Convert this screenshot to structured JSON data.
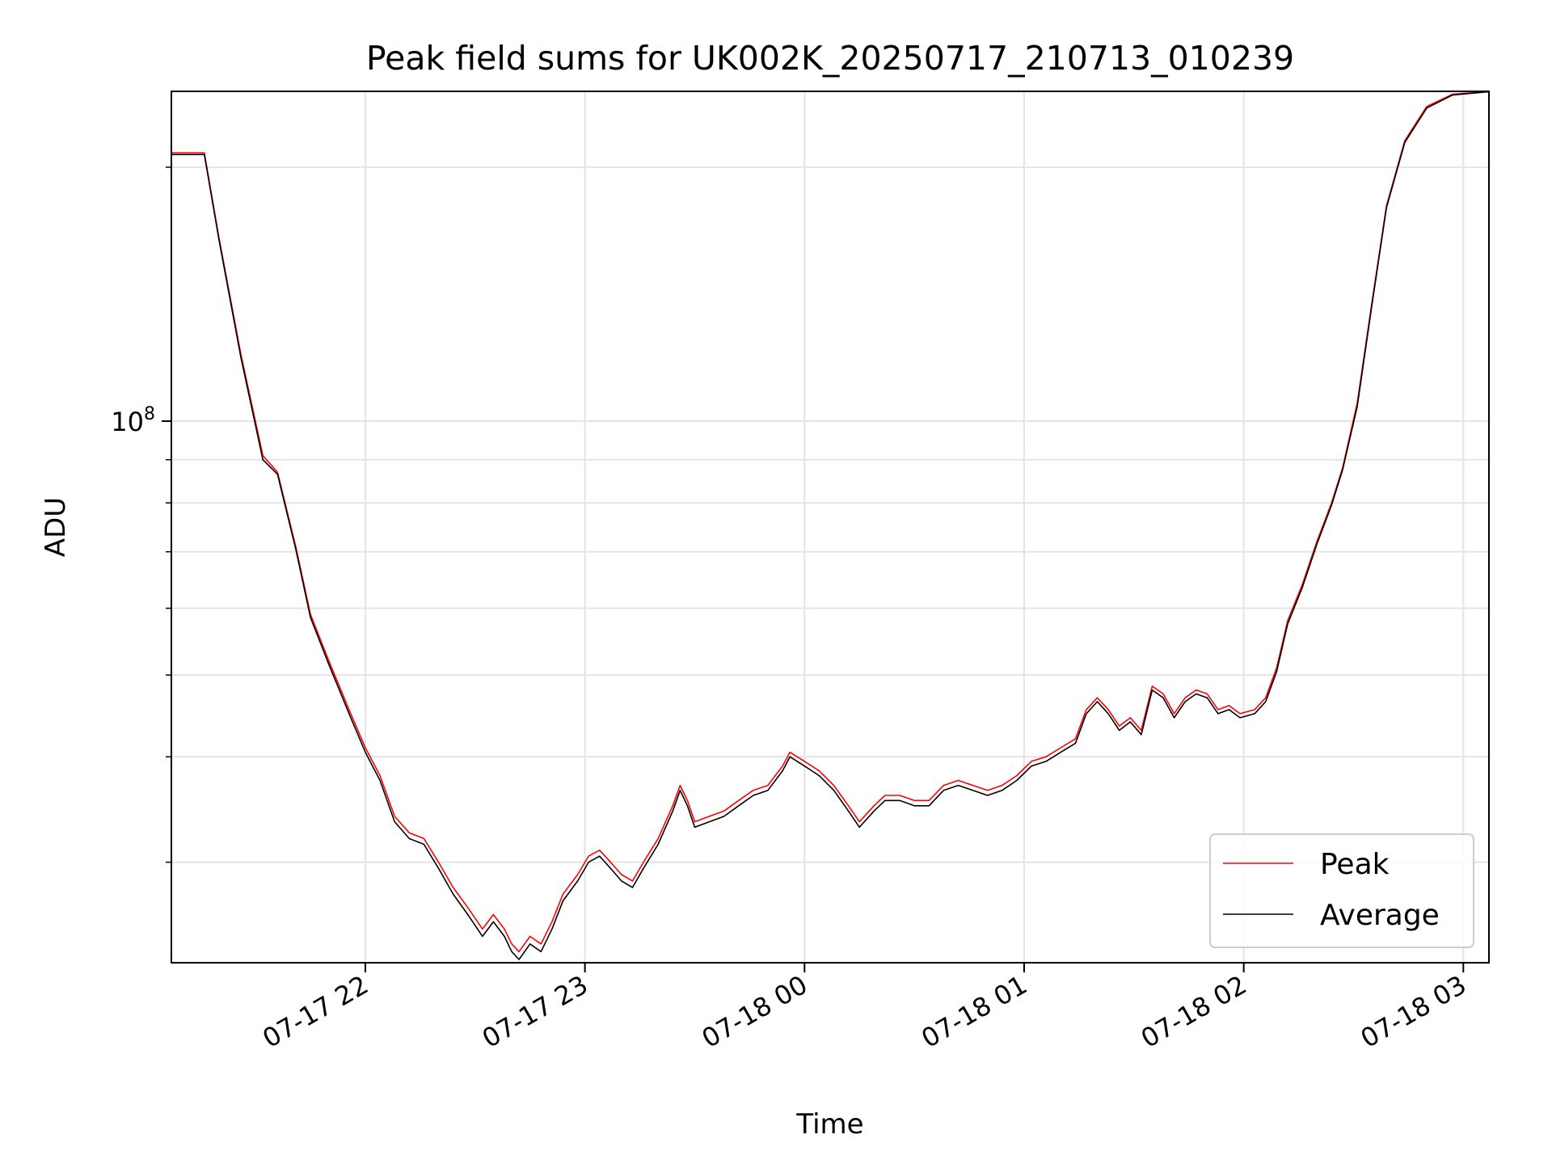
{
  "chart_data": {
    "type": "line",
    "title": "Peak field sums for UK002K_20250717_210713_010239",
    "xlabel": "Time",
    "ylabel": "ADU",
    "xscale": "time",
    "yscale": "log",
    "xlim": [
      "2025-07-17 21:07",
      "2025-07-18 03:07"
    ],
    "ylim": [
      22800000,
      246000000
    ],
    "x_ticks": [
      {
        "value": "2025-07-17 22:00",
        "label": "07-17 22"
      },
      {
        "value": "2025-07-17 23:00",
        "label": "07-17 23"
      },
      {
        "value": "2025-07-18 00:00",
        "label": "07-18 00"
      },
      {
        "value": "2025-07-18 01:00",
        "label": "07-18 01"
      },
      {
        "value": "2025-07-18 02:00",
        "label": "07-18 02"
      },
      {
        "value": "2025-07-18 03:00",
        "label": "07-18 03"
      }
    ],
    "y_major_ticks": [
      {
        "value": 100000000,
        "base": "10",
        "exponent": "8"
      }
    ],
    "y_minor_ticks": [
      30000000,
      40000000,
      50000000,
      60000000,
      70000000,
      80000000,
      90000000,
      200000000
    ],
    "grid": true,
    "legend_position": "lower-right",
    "series": [
      {
        "name": "Peak",
        "color": "#ff0000",
        "points": [
          [
            "2025-07-17 21:07",
            208000000
          ],
          [
            "2025-07-17 21:16",
            208000000
          ],
          [
            "2025-07-17 21:20",
            165000000
          ],
          [
            "2025-07-17 21:26",
            120000000
          ],
          [
            "2025-07-17 21:32",
            91000000
          ],
          [
            "2025-07-17 21:36",
            87000000
          ],
          [
            "2025-07-17 21:41",
            71000000
          ],
          [
            "2025-07-17 21:45",
            59000000
          ],
          [
            "2025-07-17 21:50",
            52000000
          ],
          [
            "2025-07-17 21:56",
            45000000
          ],
          [
            "2025-07-17 22:00",
            41000000
          ],
          [
            "2025-07-17 22:04",
            38000000
          ],
          [
            "2025-07-17 22:08",
            34000000
          ],
          [
            "2025-07-17 22:12",
            32500000
          ],
          [
            "2025-07-17 22:16",
            32000000
          ],
          [
            "2025-07-17 22:20",
            30000000
          ],
          [
            "2025-07-17 22:24",
            28000000
          ],
          [
            "2025-07-17 22:28",
            26500000
          ],
          [
            "2025-07-17 22:32",
            25000000
          ],
          [
            "2025-07-17 22:35",
            26000000
          ],
          [
            "2025-07-17 22:38",
            25000000
          ],
          [
            "2025-07-17 22:40",
            24000000
          ],
          [
            "2025-07-17 22:42",
            23500000
          ],
          [
            "2025-07-17 22:45",
            24500000
          ],
          [
            "2025-07-17 22:48",
            24000000
          ],
          [
            "2025-07-17 22:51",
            25500000
          ],
          [
            "2025-07-17 22:54",
            27500000
          ],
          [
            "2025-07-17 22:58",
            29000000
          ],
          [
            "2025-07-17 23:01",
            30500000
          ],
          [
            "2025-07-17 23:04",
            31000000
          ],
          [
            "2025-07-17 23:07",
            30000000
          ],
          [
            "2025-07-17 23:10",
            29000000
          ],
          [
            "2025-07-17 23:13",
            28500000
          ],
          [
            "2025-07-17 23:16",
            30000000
          ],
          [
            "2025-07-17 23:20",
            32000000
          ],
          [
            "2025-07-17 23:24",
            35000000
          ],
          [
            "2025-07-17 23:26",
            37000000
          ],
          [
            "2025-07-17 23:28",
            35500000
          ],
          [
            "2025-07-17 23:30",
            33500000
          ],
          [
            "2025-07-17 23:34",
            34000000
          ],
          [
            "2025-07-17 23:38",
            34500000
          ],
          [
            "2025-07-17 23:42",
            35500000
          ],
          [
            "2025-07-17 23:46",
            36500000
          ],
          [
            "2025-07-17 23:50",
            37000000
          ],
          [
            "2025-07-17 23:54",
            39000000
          ],
          [
            "2025-07-17 23:56",
            40500000
          ],
          [
            "2025-07-18 00:00",
            39500000
          ],
          [
            "2025-07-18 00:04",
            38500000
          ],
          [
            "2025-07-18 00:08",
            37000000
          ],
          [
            "2025-07-18 00:12",
            35000000
          ],
          [
            "2025-07-18 00:15",
            33500000
          ],
          [
            "2025-07-18 00:19",
            35000000
          ],
          [
            "2025-07-18 00:22",
            36000000
          ],
          [
            "2025-07-18 00:26",
            36000000
          ],
          [
            "2025-07-18 00:30",
            35500000
          ],
          [
            "2025-07-18 00:34",
            35500000
          ],
          [
            "2025-07-18 00:38",
            37000000
          ],
          [
            "2025-07-18 00:42",
            37500000
          ],
          [
            "2025-07-18 00:46",
            37000000
          ],
          [
            "2025-07-18 00:50",
            36500000
          ],
          [
            "2025-07-18 00:54",
            37000000
          ],
          [
            "2025-07-18 00:58",
            38000000
          ],
          [
            "2025-07-18 01:02",
            39500000
          ],
          [
            "2025-07-18 01:06",
            40000000
          ],
          [
            "2025-07-18 01:10",
            41000000
          ],
          [
            "2025-07-18 01:14",
            42000000
          ],
          [
            "2025-07-18 01:17",
            45500000
          ],
          [
            "2025-07-18 01:20",
            47000000
          ],
          [
            "2025-07-18 01:23",
            45500000
          ],
          [
            "2025-07-18 01:26",
            43500000
          ],
          [
            "2025-07-18 01:29",
            44500000
          ],
          [
            "2025-07-18 01:32",
            43000000
          ],
          [
            "2025-07-18 01:35",
            48500000
          ],
          [
            "2025-07-18 01:38",
            47500000
          ],
          [
            "2025-07-18 01:41",
            45000000
          ],
          [
            "2025-07-18 01:44",
            47000000
          ],
          [
            "2025-07-18 01:47",
            48000000
          ],
          [
            "2025-07-18 01:50",
            47500000
          ],
          [
            "2025-07-18 01:53",
            45500000
          ],
          [
            "2025-07-18 01:56",
            46000000
          ],
          [
            "2025-07-18 01:59",
            45000000
          ],
          [
            "2025-07-18 02:03",
            45500000
          ],
          [
            "2025-07-18 02:06",
            47000000
          ],
          [
            "2025-07-18 02:09",
            51000000
          ],
          [
            "2025-07-18 02:12",
            58000000
          ],
          [
            "2025-07-18 02:16",
            64000000
          ],
          [
            "2025-07-18 02:20",
            72000000
          ],
          [
            "2025-07-18 02:24",
            80000000
          ],
          [
            "2025-07-18 02:27",
            88000000
          ],
          [
            "2025-07-18 02:31",
            105000000
          ],
          [
            "2025-07-18 02:35",
            138000000
          ],
          [
            "2025-07-18 02:39",
            180000000
          ],
          [
            "2025-07-18 02:44",
            215000000
          ],
          [
            "2025-07-18 02:50",
            236000000
          ],
          [
            "2025-07-18 02:57",
            244000000
          ],
          [
            "2025-07-18 03:07",
            246000000
          ]
        ]
      },
      {
        "name": "Average",
        "color": "#000000",
        "points": [
          [
            "2025-07-17 21:07",
            207000000
          ],
          [
            "2025-07-17 21:16",
            207000000
          ],
          [
            "2025-07-17 21:20",
            164000000
          ],
          [
            "2025-07-17 21:26",
            119000000
          ],
          [
            "2025-07-17 21:32",
            90000000
          ],
          [
            "2025-07-17 21:36",
            86500000
          ],
          [
            "2025-07-17 21:41",
            70500000
          ],
          [
            "2025-07-17 21:45",
            58500000
          ],
          [
            "2025-07-17 21:50",
            51500000
          ],
          [
            "2025-07-17 21:56",
            44500000
          ],
          [
            "2025-07-17 22:00",
            40500000
          ],
          [
            "2025-07-17 22:04",
            37500000
          ],
          [
            "2025-07-17 22:08",
            33500000
          ],
          [
            "2025-07-17 22:12",
            32000000
          ],
          [
            "2025-07-17 22:16",
            31500000
          ],
          [
            "2025-07-17 22:20",
            29500000
          ],
          [
            "2025-07-17 22:24",
            27500000
          ],
          [
            "2025-07-17 22:28",
            26000000
          ],
          [
            "2025-07-17 22:32",
            24500000
          ],
          [
            "2025-07-17 22:35",
            25500000
          ],
          [
            "2025-07-17 22:38",
            24500000
          ],
          [
            "2025-07-17 22:40",
            23500000
          ],
          [
            "2025-07-17 22:42",
            23000000
          ],
          [
            "2025-07-17 22:45",
            24000000
          ],
          [
            "2025-07-17 22:48",
            23500000
          ],
          [
            "2025-07-17 22:51",
            25000000
          ],
          [
            "2025-07-17 22:54",
            27000000
          ],
          [
            "2025-07-17 22:58",
            28500000
          ],
          [
            "2025-07-17 23:01",
            30000000
          ],
          [
            "2025-07-17 23:04",
            30500000
          ],
          [
            "2025-07-17 23:07",
            29500000
          ],
          [
            "2025-07-17 23:10",
            28500000
          ],
          [
            "2025-07-17 23:13",
            28000000
          ],
          [
            "2025-07-17 23:16",
            29500000
          ],
          [
            "2025-07-17 23:20",
            31500000
          ],
          [
            "2025-07-17 23:24",
            34500000
          ],
          [
            "2025-07-17 23:26",
            36500000
          ],
          [
            "2025-07-17 23:28",
            35000000
          ],
          [
            "2025-07-17 23:30",
            33000000
          ],
          [
            "2025-07-17 23:34",
            33500000
          ],
          [
            "2025-07-17 23:38",
            34000000
          ],
          [
            "2025-07-17 23:42",
            35000000
          ],
          [
            "2025-07-17 23:46",
            36000000
          ],
          [
            "2025-07-17 23:50",
            36500000
          ],
          [
            "2025-07-17 23:54",
            38500000
          ],
          [
            "2025-07-17 23:56",
            40000000
          ],
          [
            "2025-07-18 00:00",
            39000000
          ],
          [
            "2025-07-18 00:04",
            38000000
          ],
          [
            "2025-07-18 00:08",
            36500000
          ],
          [
            "2025-07-18 00:12",
            34500000
          ],
          [
            "2025-07-18 00:15",
            33000000
          ],
          [
            "2025-07-18 00:19",
            34500000
          ],
          [
            "2025-07-18 00:22",
            35500000
          ],
          [
            "2025-07-18 00:26",
            35500000
          ],
          [
            "2025-07-18 00:30",
            35000000
          ],
          [
            "2025-07-18 00:34",
            35000000
          ],
          [
            "2025-07-18 00:38",
            36500000
          ],
          [
            "2025-07-18 00:42",
            37000000
          ],
          [
            "2025-07-18 00:46",
            36500000
          ],
          [
            "2025-07-18 00:50",
            36000000
          ],
          [
            "2025-07-18 00:54",
            36500000
          ],
          [
            "2025-07-18 00:58",
            37500000
          ],
          [
            "2025-07-18 01:02",
            39000000
          ],
          [
            "2025-07-18 01:06",
            39500000
          ],
          [
            "2025-07-18 01:10",
            40500000
          ],
          [
            "2025-07-18 01:14",
            41500000
          ],
          [
            "2025-07-18 01:17",
            45000000
          ],
          [
            "2025-07-18 01:20",
            46500000
          ],
          [
            "2025-07-18 01:23",
            45000000
          ],
          [
            "2025-07-18 01:26",
            43000000
          ],
          [
            "2025-07-18 01:29",
            44000000
          ],
          [
            "2025-07-18 01:32",
            42500000
          ],
          [
            "2025-07-18 01:35",
            48000000
          ],
          [
            "2025-07-18 01:38",
            47000000
          ],
          [
            "2025-07-18 01:41",
            44500000
          ],
          [
            "2025-07-18 01:44",
            46500000
          ],
          [
            "2025-07-18 01:47",
            47500000
          ],
          [
            "2025-07-18 01:50",
            47000000
          ],
          [
            "2025-07-18 01:53",
            45000000
          ],
          [
            "2025-07-18 01:56",
            45500000
          ],
          [
            "2025-07-18 01:59",
            44500000
          ],
          [
            "2025-07-18 02:03",
            45000000
          ],
          [
            "2025-07-18 02:06",
            46500000
          ],
          [
            "2025-07-18 02:09",
            50500000
          ],
          [
            "2025-07-18 02:12",
            57500000
          ],
          [
            "2025-07-18 02:16",
            63500000
          ],
          [
            "2025-07-18 02:20",
            71500000
          ],
          [
            "2025-07-18 02:24",
            79500000
          ],
          [
            "2025-07-18 02:27",
            87500000
          ],
          [
            "2025-07-18 02:31",
            104000000
          ],
          [
            "2025-07-18 02:35",
            137000000
          ],
          [
            "2025-07-18 02:39",
            179000000
          ],
          [
            "2025-07-18 02:44",
            214000000
          ],
          [
            "2025-07-18 02:50",
            235000000
          ],
          [
            "2025-07-18 02:57",
            243500000
          ],
          [
            "2025-07-18 03:07",
            245800000
          ]
        ]
      }
    ]
  }
}
